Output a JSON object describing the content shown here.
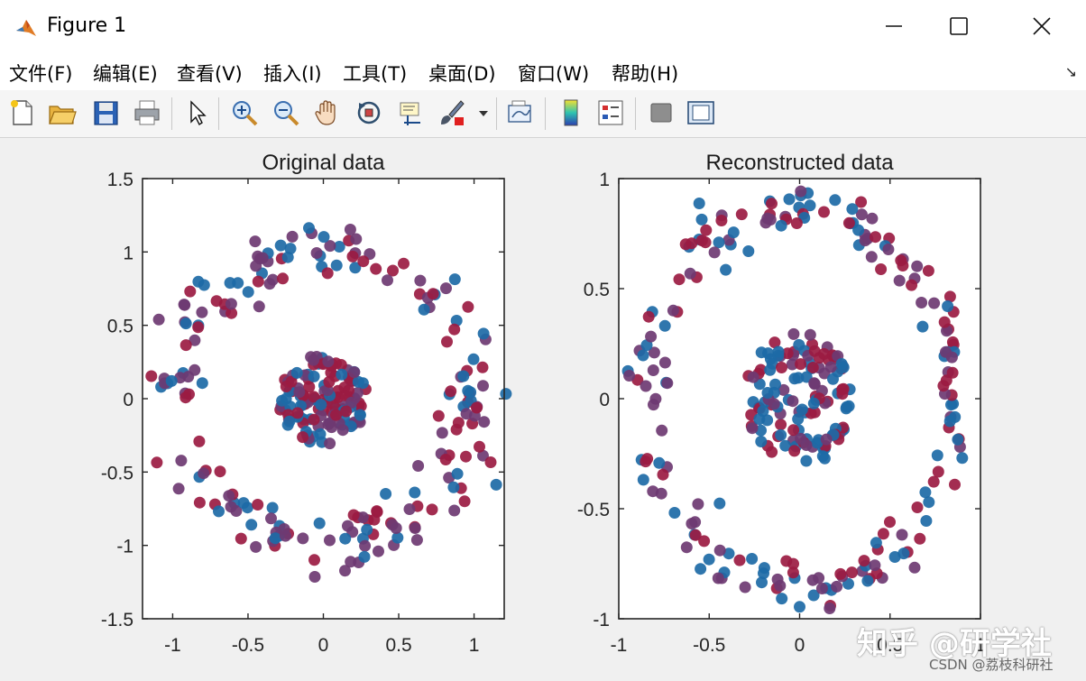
{
  "window": {
    "title": "Figure 1",
    "controls": {
      "minimize": "—",
      "maximize": "☐",
      "close": "✕"
    }
  },
  "menubar": {
    "items": [
      {
        "label": "文件(F)",
        "name": "menu-file"
      },
      {
        "label": "编辑(E)",
        "name": "menu-edit"
      },
      {
        "label": "查看(V)",
        "name": "menu-view"
      },
      {
        "label": "插入(I)",
        "name": "menu-insert"
      },
      {
        "label": "工具(T)",
        "name": "menu-tools"
      },
      {
        "label": "桌面(D)",
        "name": "menu-desktop"
      },
      {
        "label": "窗口(W)",
        "name": "menu-window"
      },
      {
        "label": "帮助(H)",
        "name": "menu-help"
      }
    ],
    "corner_icon": "↘"
  },
  "toolbar": {
    "buttons": [
      "new-figure-icon",
      "open-file-icon",
      "save-icon",
      "print-icon",
      "select-pointer-icon",
      "zoom-in-icon",
      "zoom-out-icon",
      "pan-hand-icon",
      "rotate-3d-icon",
      "data-cursor-icon",
      "brush-icon",
      "brush-dropdown-icon",
      "link-plot-icon",
      "colorbar-icon",
      "legend-icon",
      "hide-plot-tools-icon",
      "show-plot-tools-icon"
    ]
  },
  "colors": {
    "marker_red": "#9b1b42",
    "marker_purple": "#6e3a72",
    "marker_blue": "#1d6aa6",
    "axes_bg": "#ffffff",
    "figure_bg": "#f0f0f0"
  },
  "chart_data": [
    {
      "type": "scatter",
      "title": "Original data",
      "xlabel": "",
      "ylabel": "",
      "xlim": [
        -1.2,
        1.2
      ],
      "ylim": [
        -1.5,
        1.5
      ],
      "xticks": [
        "-1",
        "-0.5",
        "0",
        "0.5",
        "1"
      ],
      "yticks": [
        "1.5",
        "1",
        "0.5",
        "0",
        "-0.5",
        "-1",
        "-1.5"
      ],
      "series": [
        {
          "ring_radius": 1.0,
          "ring_noise": 0.1,
          "count": 200
        },
        {
          "cluster_radius": 0.3,
          "count": 130
        }
      ]
    },
    {
      "type": "scatter",
      "title": "Reconstructed data",
      "xlabel": "",
      "ylabel": "",
      "xlim": [
        -1.0,
        1.0
      ],
      "ylim": [
        -1.0,
        1.0
      ],
      "xticks": [
        "-1",
        "-0.5",
        "0",
        "0.5",
        "1"
      ],
      "yticks": [
        "1",
        "0.5",
        "0",
        "-0.5",
        "-1"
      ],
      "series": [
        {
          "ring_radius": 0.85,
          "ring_noise": 0.06,
          "count": 200
        },
        {
          "cluster_radius": 0.3,
          "count": 130
        }
      ]
    }
  ],
  "watermark": {
    "line1": "知乎 @研学社",
    "line2": "CSDN @荔枝科研社"
  }
}
